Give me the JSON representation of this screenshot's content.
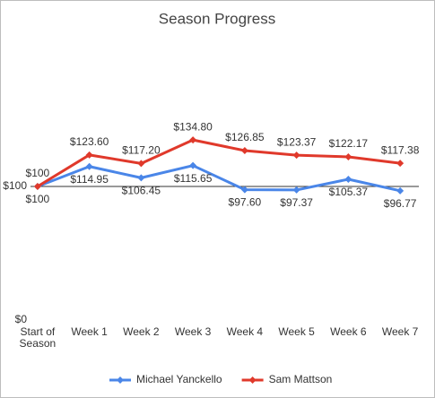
{
  "chart_data": {
    "type": "line",
    "title": "Season Progress",
    "categories": [
      "Start of Season",
      "Week 1",
      "Week 2",
      "Week 3",
      "Week 4",
      "Week 5",
      "Week 6",
      "Week 7"
    ],
    "series": [
      {
        "name": "Michael Yanckello",
        "color": "#4a86e8",
        "values": [
          100,
          114.95,
          106.45,
          115.65,
          97.6,
          97.37,
          105.37,
          96.77
        ],
        "value_labels": [
          "$100",
          "$114.95",
          "$106.45",
          "$115.65",
          "$97.60",
          "$97.37",
          "$105.37",
          "$96.77"
        ],
        "label_position": "below"
      },
      {
        "name": "Sam Mattson",
        "color": "#e0392b",
        "values": [
          100,
          123.6,
          117.2,
          134.8,
          126.85,
          123.37,
          122.17,
          117.38
        ],
        "value_labels": [
          "$100",
          "$123.60",
          "$117.20",
          "$134.80",
          "$126.85",
          "$123.37",
          "$122.17",
          "$117.38"
        ],
        "label_position": "above"
      }
    ],
    "ylim": [
      0,
      200
    ],
    "yticks": [
      {
        "value": 0,
        "label": "$0"
      },
      {
        "value": 100,
        "label": "$100"
      }
    ],
    "x_axis_at": 100,
    "legend": "bottom"
  }
}
